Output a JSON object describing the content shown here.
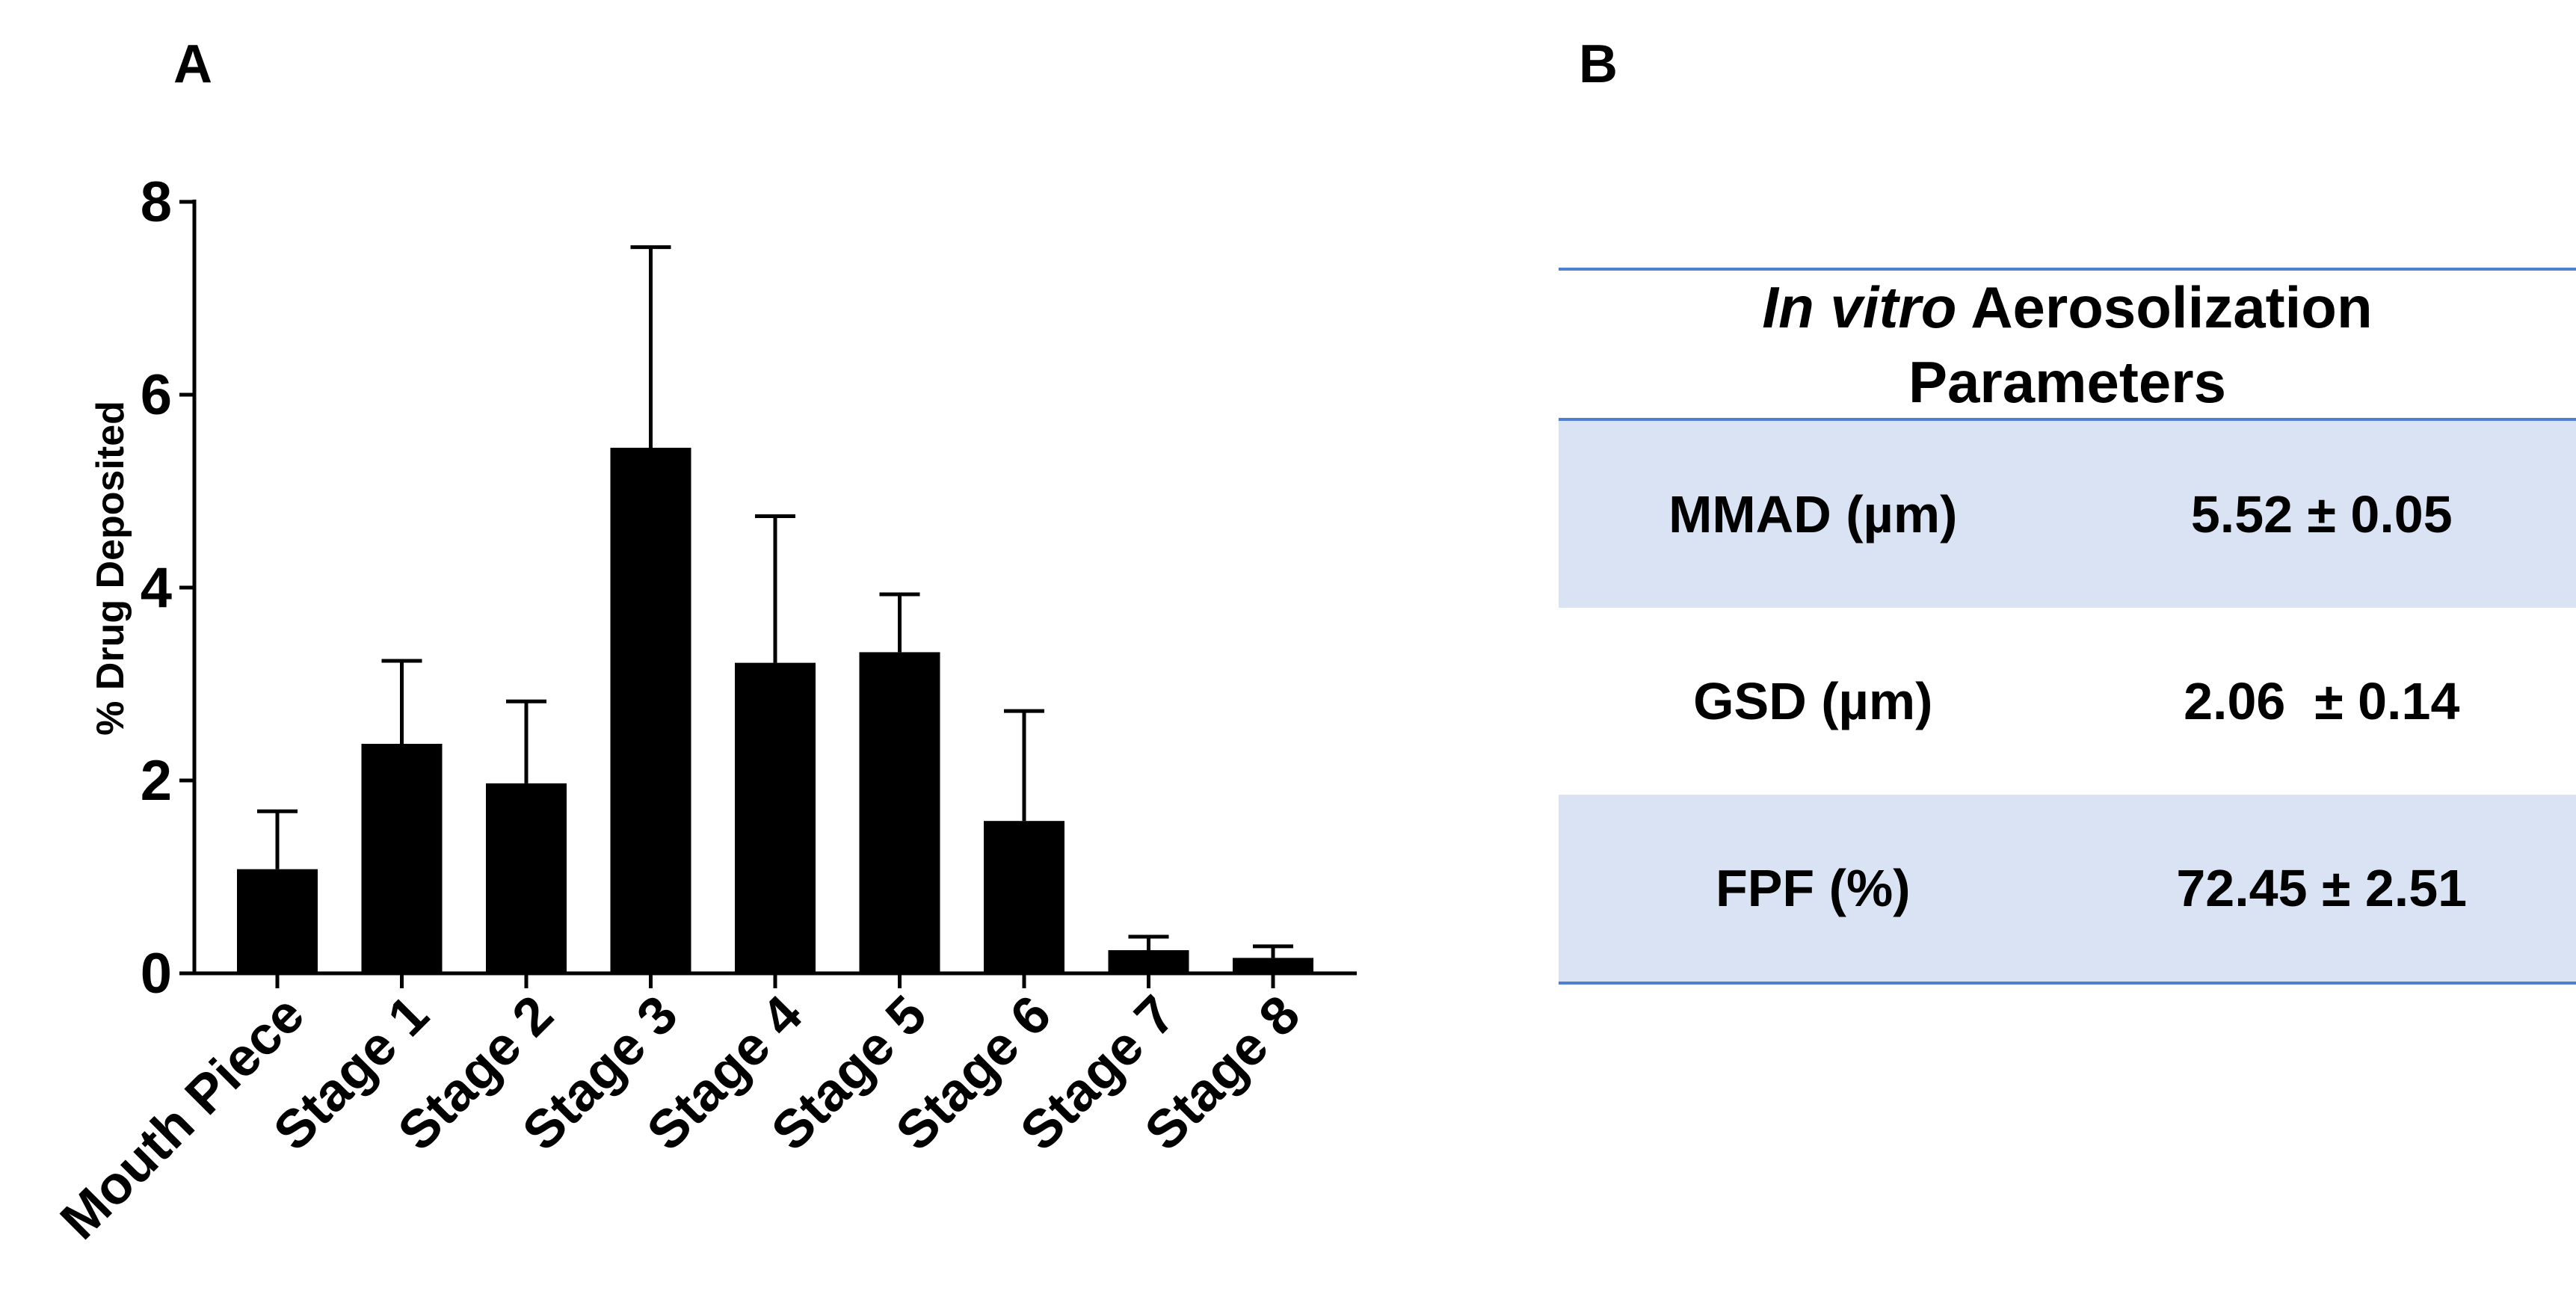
{
  "panels": {
    "a_label": "A",
    "b_label": "B"
  },
  "chart_data": {
    "type": "bar",
    "title": "",
    "xlabel": "",
    "ylabel": "% Drug Deposited",
    "ylim": [
      0,
      8
    ],
    "yticks": [
      0,
      2,
      4,
      6,
      8
    ],
    "categories": [
      "Mouth Piece",
      "Stage 1",
      "Stage 2",
      "Stage 3",
      "Stage 4",
      "Stage 5",
      "Stage 6",
      "Stage 7",
      "Stage 8"
    ],
    "values": [
      1.08,
      2.38,
      1.97,
      5.45,
      3.22,
      3.33,
      1.58,
      0.24,
      0.16
    ],
    "error_upper": [
      1.68,
      3.24,
      2.82,
      7.53,
      4.74,
      3.93,
      2.72,
      0.38,
      0.28
    ],
    "bar_color": "#000000",
    "grid": false,
    "legend": "none"
  },
  "table": {
    "header_italic": "In vitro",
    "header_rest": " Aerosolization",
    "header_line2": "Parameters",
    "rows": [
      {
        "param": "MMAD (µm)",
        "value": "5.52 ± 0.05",
        "shaded": true
      },
      {
        "param": "GSD (µm)",
        "value": "2.06  ± 0.14",
        "shaded": false
      },
      {
        "param": "FPF (%)",
        "value": "72.45 ± 2.51",
        "shaded": true
      }
    ],
    "rule_color": "#4f7fd0",
    "shade_color": "#dae3f3"
  }
}
